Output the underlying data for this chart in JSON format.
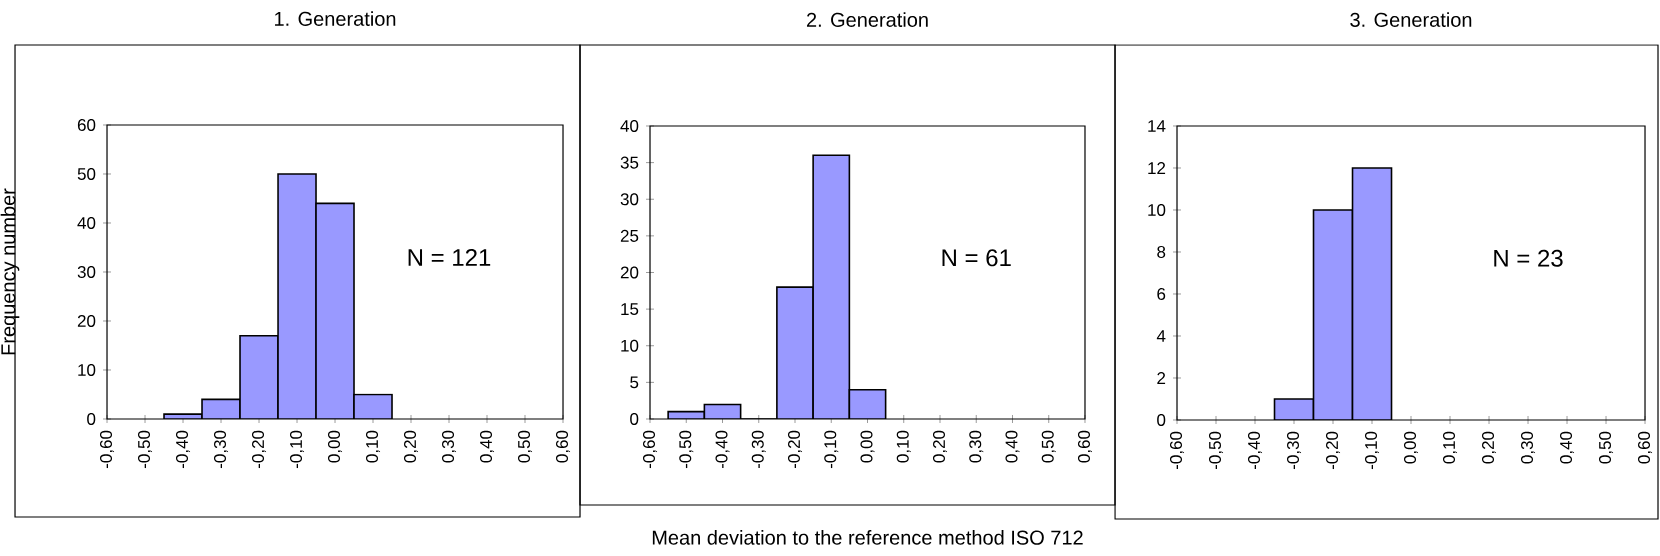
{
  "chart_data": [
    {
      "type": "histogram",
      "title": "1. Generation",
      "ylabel": "Frequency number",
      "bins": [
        -0.45,
        -0.35,
        -0.25,
        -0.15,
        -0.05,
        0.05,
        0.15
      ],
      "values": [
        1,
        4,
        17,
        50,
        44,
        5
      ],
      "color": "#9999ff",
      "xlim": [
        -0.6,
        0.6
      ],
      "ylim": [
        0,
        60
      ],
      "xticks": [
        {
          "value": -0.6,
          "label": "-0,60"
        },
        {
          "value": -0.5,
          "label": "-0,50"
        },
        {
          "value": -0.4,
          "label": "-0,40"
        },
        {
          "value": -0.3,
          "label": "-0,30"
        },
        {
          "value": -0.2,
          "label": "-0,20"
        },
        {
          "value": -0.1,
          "label": "-0,10"
        },
        {
          "value": 0,
          "label": "0,00"
        },
        {
          "value": 0.1,
          "label": "0,10"
        },
        {
          "value": 0.2,
          "label": "0,20"
        },
        {
          "value": 0.3,
          "label": "0,30"
        },
        {
          "value": 0.4,
          "label": "0,40"
        },
        {
          "value": 0.5,
          "label": "0,50"
        },
        {
          "value": 0.6,
          "label": "0,60"
        }
      ],
      "yticks": [
        0,
        10,
        20,
        30,
        40,
        50,
        60
      ],
      "annotations": [
        "N = 121"
      ]
    },
    {
      "type": "histogram",
      "title": "2. Generation",
      "xlabel": "Mean deviation to the reference method ISO 712",
      "bins": [
        -0.55,
        -0.45,
        -0.35,
        -0.25,
        -0.15,
        -0.05,
        0.05
      ],
      "values": [
        1,
        2,
        0,
        18,
        36,
        4
      ],
      "color": "#9999ff",
      "xlim": [
        -0.6,
        0.6
      ],
      "ylim": [
        0,
        40
      ],
      "xticks": [
        {
          "value": -0.6,
          "label": "-0,60"
        },
        {
          "value": -0.5,
          "label": "-0,50"
        },
        {
          "value": -0.4,
          "label": "-0,40"
        },
        {
          "value": -0.3,
          "label": "-0,30"
        },
        {
          "value": -0.2,
          "label": "-0,20"
        },
        {
          "value": -0.1,
          "label": "-0,10"
        },
        {
          "value": 0,
          "label": "0,00"
        },
        {
          "value": 0.1,
          "label": "0,10"
        },
        {
          "value": 0.2,
          "label": "0,20"
        },
        {
          "value": 0.3,
          "label": "0,30"
        },
        {
          "value": 0.4,
          "label": "0,40"
        },
        {
          "value": 0.5,
          "label": "0,50"
        },
        {
          "value": 0.6,
          "label": "0,60"
        }
      ],
      "yticks": [
        0,
        5,
        10,
        15,
        20,
        25,
        30,
        35,
        40
      ],
      "annotations": [
        "N = 61"
      ]
    },
    {
      "type": "histogram",
      "title": "3. Generation",
      "bins": [
        -0.35,
        -0.25,
        -0.15,
        -0.05
      ],
      "values": [
        1,
        10,
        12
      ],
      "color": "#9999ff",
      "xlim": [
        -0.6,
        0.6
      ],
      "ylim": [
        0,
        14
      ],
      "xticks": [
        {
          "value": -0.6,
          "label": "-0,60"
        },
        {
          "value": -0.5,
          "label": "-0,50"
        },
        {
          "value": -0.4,
          "label": "-0,40"
        },
        {
          "value": -0.3,
          "label": "-0,30"
        },
        {
          "value": -0.2,
          "label": "-0,20"
        },
        {
          "value": -0.1,
          "label": "-0,10"
        },
        {
          "value": 0,
          "label": "0,00"
        },
        {
          "value": 0.1,
          "label": "0,10"
        },
        {
          "value": 0.2,
          "label": "0,20"
        },
        {
          "value": 0.3,
          "label": "0,30"
        },
        {
          "value": 0.4,
          "label": "0,40"
        },
        {
          "value": 0.5,
          "label": "0,50"
        },
        {
          "value": 0.6,
          "label": "0,60"
        }
      ],
      "yticks": [
        0,
        2,
        4,
        6,
        8,
        10,
        12,
        14
      ],
      "annotations": [
        "N = 23"
      ]
    }
  ]
}
